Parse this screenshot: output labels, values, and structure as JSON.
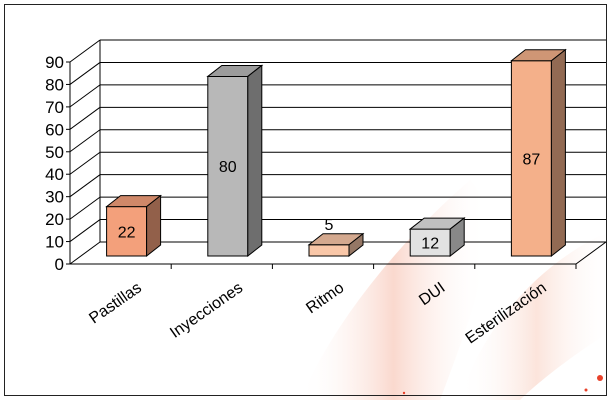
{
  "colors": {
    "orange": "#f3a07b",
    "gray": "#b8b8b8",
    "peach": "#f9c7a8",
    "light_gray": "#e2e2e2",
    "salmon": "#f4b08a",
    "background_swirl": "#e8412a"
  },
  "chart_data": {
    "type": "bar",
    "subtype": "3d-column",
    "title": "",
    "xlabel": "",
    "ylabel": "",
    "categories": [
      "Pastillas",
      "Inyecciones",
      "Ritmo",
      "DUI",
      "Esterilización"
    ],
    "values": [
      22,
      80,
      5,
      12,
      87
    ],
    "data_labels": [
      "22",
      "80",
      "5",
      "12",
      "87"
    ],
    "label_placement": [
      "inside",
      "inside",
      "above",
      "inside",
      "inside"
    ],
    "bar_colors": [
      "orange",
      "gray",
      "peach",
      "light_gray",
      "salmon"
    ],
    "y_ticks": [
      "0",
      "10",
      "20",
      "30",
      "40",
      "50",
      "60",
      "70",
      "80",
      "90"
    ],
    "ylim": [
      0,
      90
    ],
    "grid": true,
    "legend": "none"
  }
}
